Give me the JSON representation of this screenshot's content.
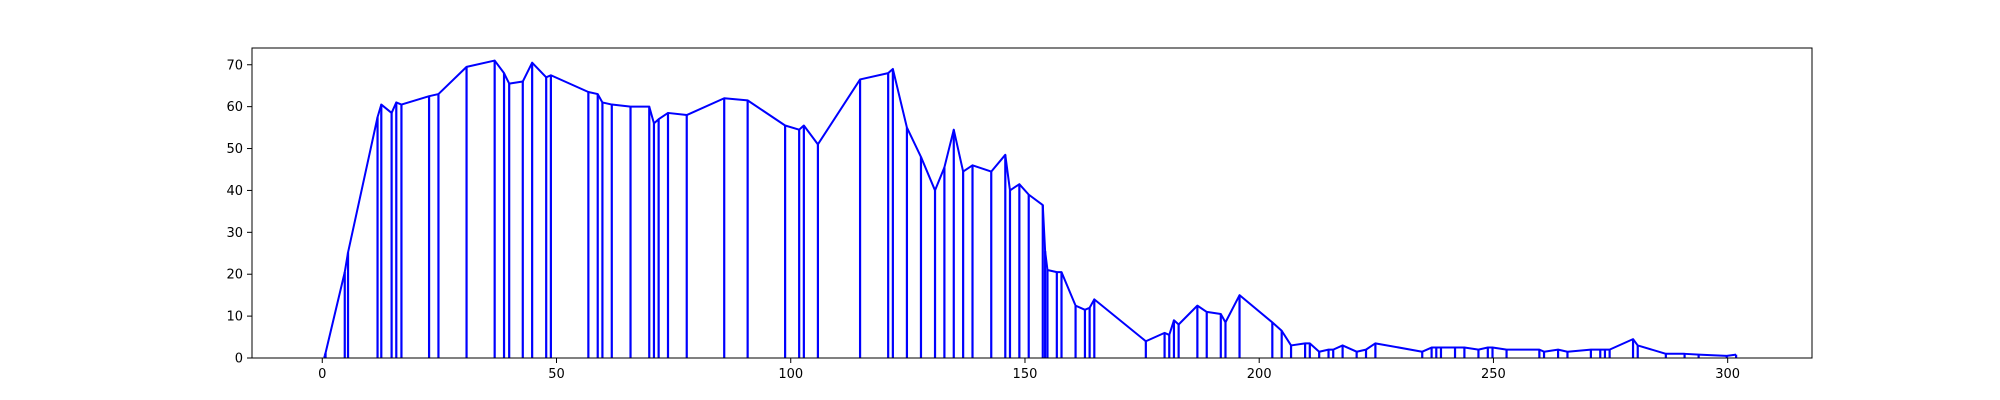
{
  "chart_data": {
    "type": "line",
    "title": "",
    "xlabel": "",
    "ylabel": "",
    "xlim": [
      -15,
      318
    ],
    "ylim": [
      0,
      74
    ],
    "grid": false,
    "legend": "none",
    "xticks": [
      0,
      50,
      100,
      150,
      200,
      250,
      300
    ],
    "yticks": [
      0,
      10,
      20,
      30,
      40,
      50,
      60,
      70
    ],
    "style": {
      "line_color": "#0000ff",
      "stems": true
    },
    "series": [
      {
        "x": [
          0.5,
          0.7,
          4.8,
          5.5,
          11.8,
          12.6,
          14.8,
          15.8,
          16.9,
          22.8,
          24.8,
          30.8,
          36.8,
          38.8,
          39.9,
          42.8,
          44.8,
          47.8,
          48.8,
          56.8,
          58.8,
          59.8,
          61.8,
          65.8,
          69.8,
          70.8,
          71.8,
          73.8,
          77.8,
          85.8,
          90.8,
          98.8,
          101.8,
          102.8,
          105.8,
          114.8,
          120.8,
          121.8,
          124.8,
          127.8,
          130.8,
          132.8,
          134.8,
          136.8,
          138.8,
          142.8,
          145.8,
          146.8,
          148.8,
          150.8,
          153.8,
          154.3,
          154.8,
          156.8,
          157.8,
          160.8,
          162.8,
          163.8,
          164.8,
          175.8,
          179.8,
          180.8,
          181.8,
          182.8,
          186.8,
          188.8,
          191.8,
          192.8,
          195.8,
          202.8,
          204.8,
          206.8,
          209.8,
          210.8,
          212.8,
          214.8,
          215.8,
          217.8,
          220.8,
          222.8,
          224.8,
          234.8,
          236.8,
          237.8,
          238.8,
          241.8,
          243.8,
          246.8,
          248.8,
          249.8,
          252.8,
          259.8,
          260.8,
          263.8,
          265.8,
          270.8,
          272.8,
          273.8,
          274.8,
          279.8,
          280.8,
          286.8,
          290.8,
          293.8,
          299.8,
          301.8
        ],
        "y": [
          0.5,
          1.2,
          20.5,
          25.2,
          57.5,
          60.5,
          58.5,
          61.0,
          60.5,
          62.5,
          63.0,
          69.5,
          71.0,
          68.0,
          65.5,
          66.0,
          70.5,
          67.0,
          67.5,
          63.5,
          63.0,
          61.0,
          60.5,
          60.0,
          60.0,
          56.0,
          57.0,
          58.5,
          58.0,
          62.0,
          61.5,
          55.5,
          54.5,
          55.5,
          51.0,
          66.5,
          68.0,
          69.0,
          55.0,
          48.0,
          40.0,
          45.5,
          54.5,
          44.5,
          46.0,
          44.5,
          48.5,
          40.0,
          41.5,
          39.0,
          36.5,
          25.5,
          21.0,
          20.5,
          20.5,
          12.5,
          11.5,
          12.0,
          14.0,
          4.0,
          6.0,
          5.5,
          9.0,
          8.0,
          12.5,
          11.0,
          10.5,
          8.5,
          15.0,
          8.5,
          6.5,
          3.0,
          3.5,
          3.5,
          1.5,
          2.0,
          2.0,
          3.0,
          1.5,
          2.0,
          3.5,
          1.5,
          2.5,
          2.5,
          2.5,
          2.5,
          2.5,
          2.0,
          2.5,
          2.5,
          2.0,
          2.0,
          1.5,
          2.0,
          1.5,
          2.0,
          2.0,
          2.0,
          2.0,
          4.5,
          3.0,
          1.0,
          1.0,
          0.8,
          0.5,
          0.8
        ]
      }
    ]
  }
}
